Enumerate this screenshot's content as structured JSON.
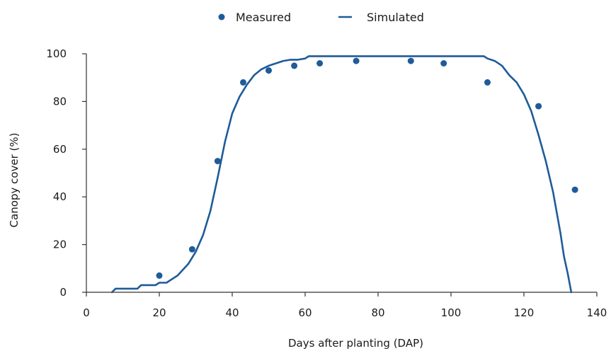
{
  "chart_data": {
    "type": "scatter+line",
    "title": "",
    "xlabel": "Days after planting (DAP)",
    "ylabel": "Canopy cover (%)",
    "xlim": [
      0,
      140
    ],
    "ylim": [
      0,
      100
    ],
    "xticks": [
      0,
      20,
      40,
      60,
      80,
      100,
      120,
      140
    ],
    "yticks": [
      0,
      20,
      40,
      60,
      80,
      100
    ],
    "grid": false,
    "legend_position": "top-center",
    "colors": {
      "series": "#1f5b99",
      "axis": "#333333"
    },
    "series": [
      {
        "name": "Measured",
        "kind": "scatter",
        "x": [
          20,
          29,
          36,
          43,
          50,
          57,
          64,
          74,
          89,
          98,
          110,
          124,
          134
        ],
        "y": [
          7,
          18,
          55,
          88,
          93,
          95,
          96,
          97,
          97,
          96,
          88,
          78,
          43
        ]
      },
      {
        "name": "Simulated",
        "kind": "line",
        "x": [
          7,
          8,
          14,
          15,
          19,
          20,
          22,
          23,
          25,
          28,
          30,
          32,
          34,
          36,
          38,
          40,
          42,
          44,
          46,
          48,
          50,
          52,
          54,
          56,
          58,
          60,
          61,
          62,
          70,
          80,
          90,
          100,
          109,
          110,
          112,
          114,
          116,
          118,
          120,
          122,
          124,
          126,
          128,
          130,
          131,
          132,
          133
        ],
        "y": [
          0,
          1.5,
          1.5,
          3,
          3,
          4,
          4,
          5,
          7,
          12,
          17,
          24,
          34,
          48,
          63,
          75,
          82,
          87,
          91,
          93.5,
          95,
          96,
          97,
          97.5,
          97.5,
          98,
          99,
          99,
          99,
          99,
          99,
          99,
          99,
          98,
          97,
          95,
          91,
          88,
          83,
          76,
          66,
          55,
          42,
          25,
          15,
          8,
          0
        ]
      }
    ]
  }
}
